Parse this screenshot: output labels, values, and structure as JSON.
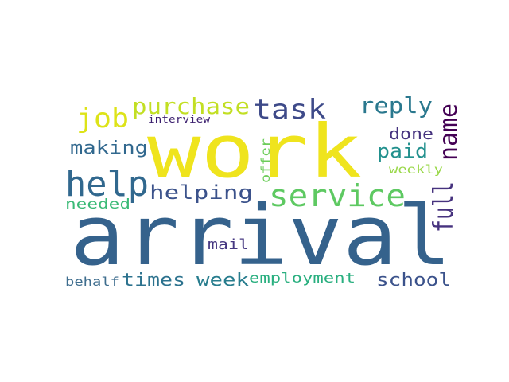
{
  "word_cloud": {
    "words": [
      {
        "text": "arrival",
        "color": "#35628c"
      },
      {
        "text": "work",
        "color": "#efe41d"
      },
      {
        "text": "service",
        "color": "#5ec962"
      },
      {
        "text": "help",
        "color": "#31688e"
      },
      {
        "text": "task",
        "color": "#3e4a89"
      },
      {
        "text": "full",
        "color": "#46327e"
      },
      {
        "text": "name",
        "color": "#440154"
      },
      {
        "text": "purchase",
        "color": "#c2df23"
      },
      {
        "text": "job",
        "color": "#dde318"
      },
      {
        "text": "reply",
        "color": "#2a788e"
      },
      {
        "text": "helping",
        "color": "#3b528b"
      },
      {
        "text": "making",
        "color": "#31688e"
      },
      {
        "text": "paid",
        "color": "#21908d"
      },
      {
        "text": "done",
        "color": "#46337f"
      },
      {
        "text": "week",
        "color": "#287d8e"
      },
      {
        "text": "school",
        "color": "#3b528b"
      },
      {
        "text": "times",
        "color": "#2c728e"
      },
      {
        "text": "needed",
        "color": "#3aba76"
      },
      {
        "text": "employment",
        "color": "#29af7f"
      },
      {
        "text": "mail",
        "color": "#453781"
      },
      {
        "text": "behalf",
        "color": "#3e6d8e"
      },
      {
        "text": "offer",
        "color": "#6ccd5a"
      },
      {
        "text": "weekly",
        "color": "#9ad84a"
      },
      {
        "text": "interview",
        "color": "#3b1f6e"
      }
    ]
  }
}
